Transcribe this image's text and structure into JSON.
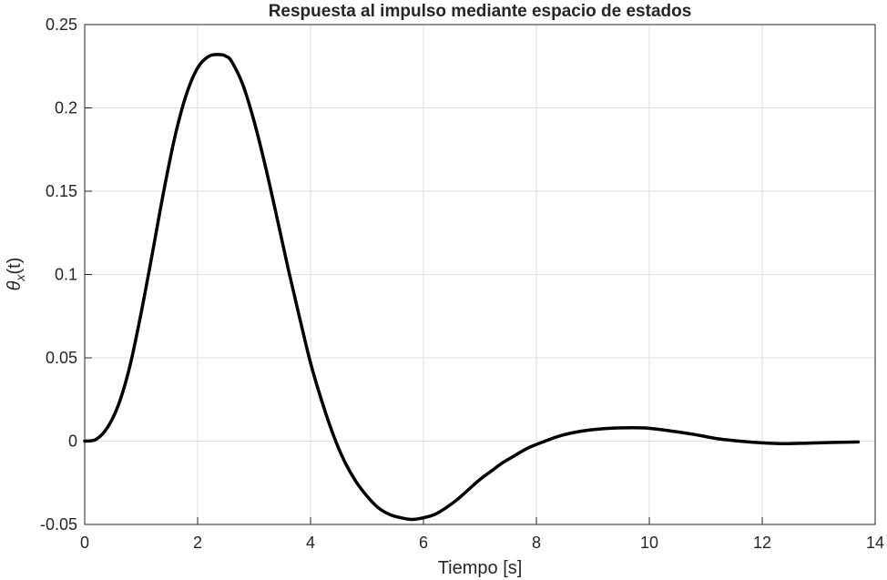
{
  "chart_data": {
    "type": "line",
    "title": "Respuesta al impulso mediante espacio de estados",
    "xlabel": "Tiempo [s]",
    "ylabel": {
      "base": "θ",
      "sub": "x",
      "suffix": "(t)"
    },
    "xlim": [
      0,
      14
    ],
    "ylim": [
      -0.05,
      0.25
    ],
    "xticks": [
      0,
      2,
      4,
      6,
      8,
      10,
      12,
      14
    ],
    "xtick_labels": [
      "0",
      "2",
      "4",
      "6",
      "8",
      "10",
      "12",
      "14"
    ],
    "yticks": [
      -0.05,
      0,
      0.05,
      0.1,
      0.15,
      0.2,
      0.25
    ],
    "ytick_labels": [
      "-0.05",
      "0",
      "0.05",
      "0.1",
      "0.15",
      "0.2",
      "0.25"
    ],
    "grid": true,
    "line_color": "#000000",
    "series": [
      {
        "x": [
          0,
          0.2,
          0.4,
          0.6,
          0.8,
          1.0,
          1.2,
          1.4,
          1.6,
          1.8,
          2.0,
          2.2,
          2.4,
          2.5,
          2.6,
          2.8,
          3.0,
          3.2,
          3.4,
          3.6,
          3.8,
          4.0,
          4.2,
          4.4,
          4.6,
          4.8,
          5.0,
          5.2,
          5.4,
          5.6,
          5.8,
          6.0,
          6.2,
          6.4,
          6.6,
          6.8,
          7.0,
          7.2,
          7.4,
          7.6,
          7.8,
          8.0,
          8.4,
          8.8,
          9.2,
          9.6,
          9.8,
          10.0,
          10.4,
          10.8,
          11.2,
          11.6,
          12.0,
          12.4,
          12.8,
          13.2,
          13.7
        ],
        "values": [
          0,
          0.001,
          0.008,
          0.022,
          0.045,
          0.077,
          0.113,
          0.15,
          0.183,
          0.208,
          0.224,
          0.231,
          0.232,
          0.231,
          0.228,
          0.214,
          0.192,
          0.165,
          0.135,
          0.104,
          0.075,
          0.047,
          0.024,
          0.004,
          -0.012,
          -0.024,
          -0.033,
          -0.04,
          -0.044,
          -0.046,
          -0.047,
          -0.046,
          -0.044,
          -0.04,
          -0.035,
          -0.029,
          -0.023,
          -0.018,
          -0.013,
          -0.009,
          -0.005,
          -0.002,
          0.003,
          0.006,
          0.0075,
          0.008,
          0.008,
          0.0077,
          0.006,
          0.004,
          0.0015,
          0.0,
          -0.001,
          -0.0015,
          -0.0012,
          -0.0008,
          -0.0005
        ]
      }
    ]
  }
}
